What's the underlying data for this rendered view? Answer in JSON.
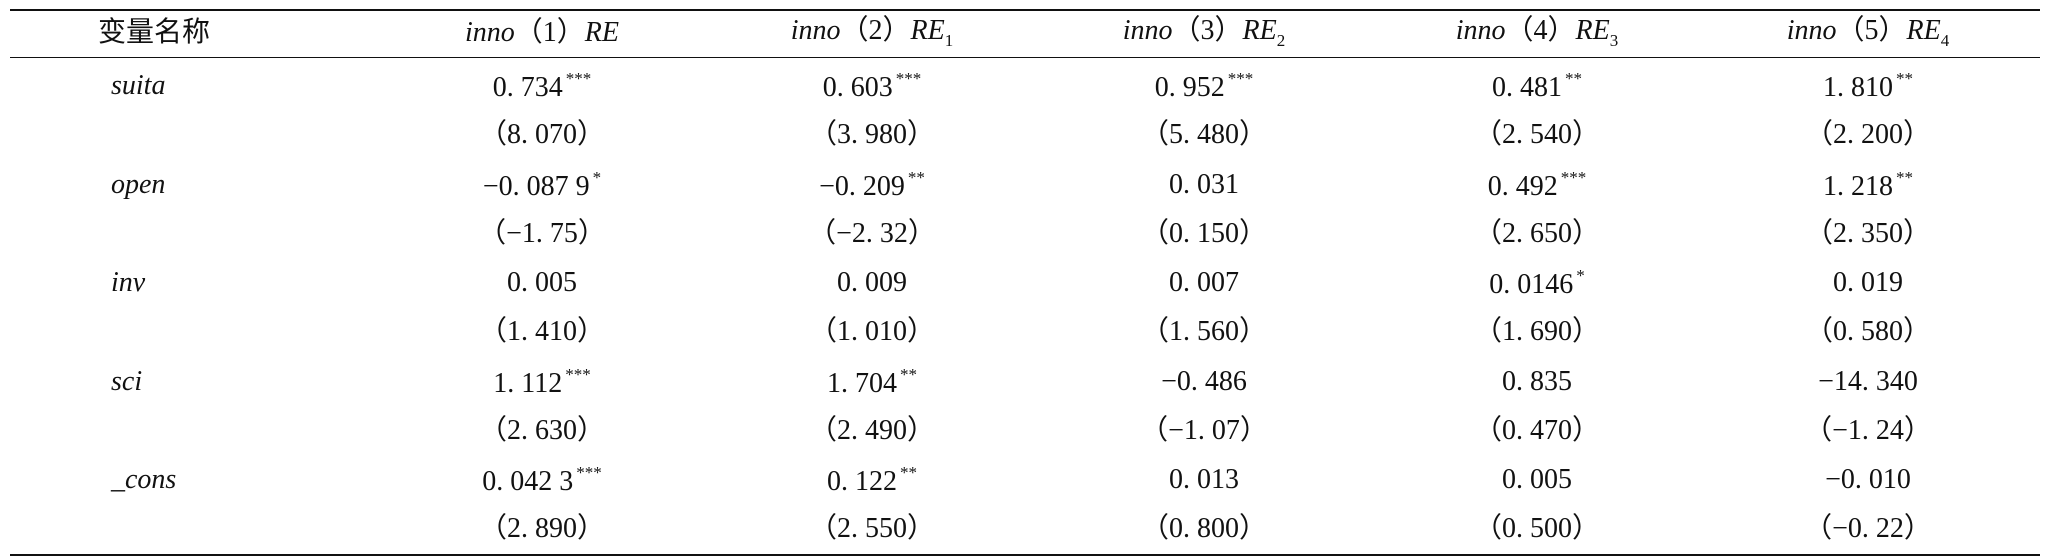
{
  "table": {
    "header": {
      "variable": "变量名称",
      "columns": [
        {
          "model": "inno",
          "index": "（1）",
          "estimator": "RE",
          "sub": null
        },
        {
          "model": "inno",
          "index": "（2）",
          "estimator": "RE",
          "sub": "1"
        },
        {
          "model": "inno",
          "index": "（3）",
          "estimator": "RE",
          "sub": "2"
        },
        {
          "model": "inno",
          "index": "（4）",
          "estimator": "RE",
          "sub": "3"
        },
        {
          "model": "inno",
          "index": "（5）",
          "estimator": "RE",
          "sub": "4"
        }
      ]
    },
    "rows": [
      {
        "name": "suita",
        "coef": [
          {
            "v": "0. 734",
            "stars": "***"
          },
          {
            "v": "0. 603",
            "stars": "***"
          },
          {
            "v": "0. 952",
            "stars": "***"
          },
          {
            "v": "0. 481",
            "stars": "**"
          },
          {
            "v": "1. 810",
            "stars": "**"
          }
        ],
        "t": [
          "（8. 070）",
          "（3. 980）",
          "（5. 480）",
          "（2. 540）",
          "（2. 200）"
        ]
      },
      {
        "name": "open",
        "coef": [
          {
            "v": "−0. 087 9",
            "stars": "*"
          },
          {
            "v": "−0. 209",
            "stars": "**"
          },
          {
            "v": "0. 031",
            "stars": null
          },
          {
            "v": "0. 492",
            "stars": "***"
          },
          {
            "v": "1. 218",
            "stars": "**"
          }
        ],
        "t": [
          "（−1. 75）",
          "（−2. 32）",
          "（0. 150）",
          "（2. 650）",
          "（2. 350）"
        ]
      },
      {
        "name": "inv",
        "coef": [
          {
            "v": "0. 005",
            "stars": null
          },
          {
            "v": "0. 009",
            "stars": null
          },
          {
            "v": "0. 007",
            "stars": null
          },
          {
            "v": "0. 0146",
            "stars": "*"
          },
          {
            "v": "0. 019",
            "stars": null
          }
        ],
        "t": [
          "（1. 410）",
          "（1. 010）",
          "（1. 560）",
          "（1. 690）",
          "（0. 580）"
        ]
      },
      {
        "name": "sci",
        "coef": [
          {
            "v": "1. 112",
            "stars": "***"
          },
          {
            "v": "1. 704",
            "stars": "**"
          },
          {
            "v": "−0. 486",
            "stars": null
          },
          {
            "v": "0. 835",
            "stars": null
          },
          {
            "v": "−14. 340",
            "stars": null
          }
        ],
        "t": [
          "（2. 630）",
          "（2. 490）",
          "（−1. 07）",
          "（0. 470）",
          "（−1. 24）"
        ]
      },
      {
        "name": "_cons",
        "coef": [
          {
            "v": "0. 042 3",
            "stars": "***"
          },
          {
            "v": "0. 122",
            "stars": "**"
          },
          {
            "v": "0. 013",
            "stars": null
          },
          {
            "v": "0. 005",
            "stars": null
          },
          {
            "v": "−0. 010",
            "stars": null
          }
        ],
        "t": [
          "（2. 890）",
          "（2. 550）",
          "（0. 800）",
          "（0. 500）",
          "（−0. 22）"
        ]
      }
    ]
  }
}
